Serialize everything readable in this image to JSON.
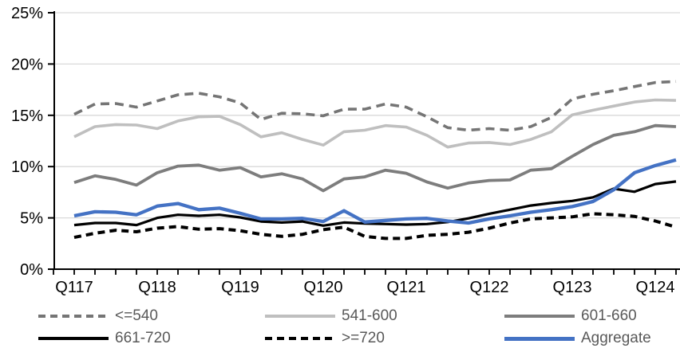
{
  "chart_data": {
    "type": "line",
    "title": "",
    "xlabel": "",
    "ylabel": "",
    "n_points": 30,
    "x_tick_labels": [
      "Q117",
      "Q118",
      "Q119",
      "Q120",
      "Q121",
      "Q122",
      "Q123",
      "Q124"
    ],
    "points_per_label": 4,
    "y_axis": {
      "min": 0,
      "max": 25,
      "step": 5,
      "tick_labels": [
        "0%",
        "5%",
        "10%",
        "15%",
        "20%",
        "25%"
      ]
    },
    "grid": "horizontal",
    "gridline_color": "#d9d9d9",
    "axis_color": "#000000",
    "legend_position": "bottom",
    "series": [
      {
        "name": "<=540",
        "color": "#757575",
        "dash": "dashed",
        "values": [
          15.1,
          16.1,
          16.15,
          15.8,
          16.4,
          17.0,
          17.15,
          16.8,
          16.2,
          14.6,
          15.2,
          15.15,
          14.95,
          15.6,
          15.6,
          16.1,
          15.8,
          14.85,
          13.8,
          13.55,
          13.7,
          13.55,
          13.9,
          14.8,
          16.6,
          17.05,
          17.4,
          17.8,
          18.2,
          18.3
        ]
      },
      {
        "name": "541-600",
        "color": "#bfbfbf",
        "dash": "solid",
        "values": [
          12.9,
          13.9,
          14.1,
          14.05,
          13.7,
          14.45,
          14.85,
          14.9,
          14.1,
          12.9,
          13.3,
          12.65,
          12.1,
          13.4,
          13.55,
          14.0,
          13.85,
          13.05,
          11.9,
          12.3,
          12.35,
          12.15,
          12.65,
          13.4,
          15.05,
          15.5,
          15.9,
          16.3,
          16.5,
          16.45
        ]
      },
      {
        "name": "601-660",
        "color": "#7d7d7d",
        "dash": "solid",
        "values": [
          8.45,
          9.1,
          8.75,
          8.2,
          9.4,
          10.05,
          10.15,
          9.65,
          9.9,
          9.0,
          9.3,
          8.8,
          7.65,
          8.8,
          9.0,
          9.65,
          9.35,
          8.5,
          7.9,
          8.4,
          8.65,
          8.7,
          9.65,
          9.8,
          11.0,
          12.15,
          13.05,
          13.4,
          14.0,
          13.9
        ]
      },
      {
        "name": "661-720",
        "color": "#000000",
        "dash": "solid",
        "values": [
          4.3,
          4.5,
          4.5,
          4.3,
          5.0,
          5.3,
          5.2,
          5.3,
          5.05,
          4.65,
          4.55,
          4.65,
          4.25,
          4.55,
          4.45,
          4.4,
          4.35,
          4.4,
          4.6,
          4.95,
          5.4,
          5.8,
          6.2,
          6.45,
          6.65,
          7.0,
          7.85,
          7.55,
          8.3,
          8.55
        ]
      },
      {
        "name": ">=720",
        "color": "#000000",
        "dash": "dashed",
        "values": [
          3.1,
          3.5,
          3.8,
          3.65,
          4.0,
          4.15,
          3.9,
          3.95,
          3.75,
          3.4,
          3.2,
          3.4,
          3.85,
          4.1,
          3.2,
          3.0,
          3.0,
          3.3,
          3.4,
          3.6,
          4.0,
          4.5,
          4.9,
          5.0,
          5.1,
          5.4,
          5.3,
          5.15,
          4.7,
          4.1
        ]
      },
      {
        "name": "Aggregate",
        "color": "#4472c4",
        "dash": "solid",
        "values": [
          5.2,
          5.6,
          5.55,
          5.3,
          6.15,
          6.4,
          5.8,
          5.95,
          5.45,
          4.9,
          4.9,
          4.95,
          4.65,
          5.7,
          4.6,
          4.75,
          4.9,
          4.95,
          4.7,
          4.5,
          4.9,
          5.2,
          5.55,
          5.8,
          6.1,
          6.6,
          7.75,
          9.4,
          10.1,
          10.65
        ]
      }
    ]
  },
  "legend": {
    "layout": [
      [
        0,
        1,
        2
      ],
      [
        3,
        4,
        5
      ]
    ]
  }
}
